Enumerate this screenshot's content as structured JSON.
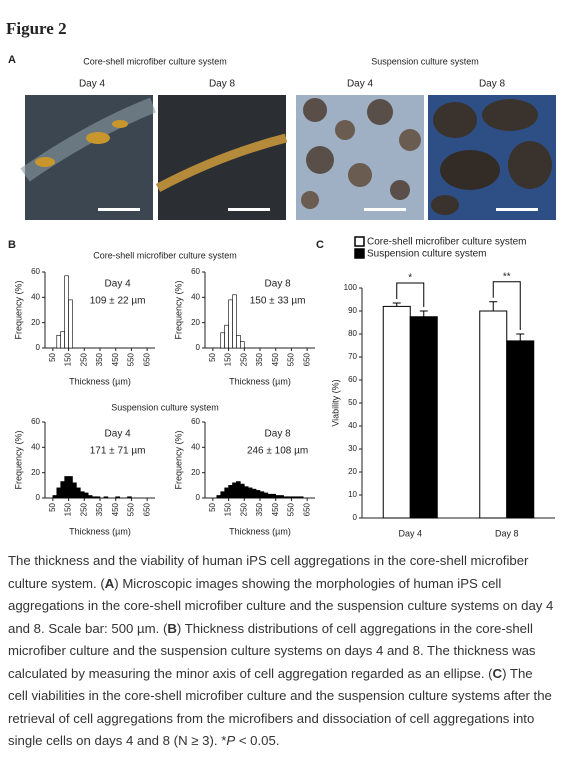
{
  "figure_title": "Figure 2",
  "panel_a": {
    "label": "A",
    "groups": [
      {
        "title": "Core-shell microfiber culture system",
        "days": [
          "Day 4",
          "Day 8"
        ]
      },
      {
        "title": "Suspension culture system",
        "days": [
          "Day 4",
          "Day 8"
        ]
      }
    ]
  },
  "panel_b": {
    "label": "B",
    "groups": [
      "Core-shell microfiber culture system",
      "Suspension culture system"
    ]
  },
  "panel_c": {
    "label": "C"
  },
  "chart_data": [
    {
      "type": "histogram",
      "annotations": [
        "Day 4",
        "109 ± 22 µm"
      ],
      "ylabel": "Frequency (%)",
      "xlabel": "Thickness (µm)",
      "bins": [
        75,
        100,
        125,
        150,
        175
      ],
      "counts": [
        10,
        13,
        57,
        38
      ],
      "color": "#ffffff",
      "xlim": [
        0,
        700
      ],
      "xticks": [
        50,
        150,
        250,
        350,
        450,
        550,
        650
      ],
      "ylim": [
        0,
        60
      ],
      "yticks": [
        0,
        20,
        40,
        60
      ]
    },
    {
      "type": "histogram",
      "annotations": [
        "Day 8",
        "150 ± 33 µm"
      ],
      "ylabel": "Frequency (%)",
      "xlabel": "Thickness (µm)",
      "bins": [
        100,
        125,
        150,
        175,
        200,
        225,
        250
      ],
      "counts": [
        12,
        18,
        38,
        42,
        10,
        5
      ],
      "color": "#ffffff",
      "xlim": [
        0,
        700
      ],
      "xticks": [
        50,
        150,
        250,
        350,
        450,
        550,
        650
      ],
      "ylim": [
        0,
        60
      ],
      "yticks": [
        0,
        20,
        40,
        60
      ]
    },
    {
      "type": "histogram",
      "annotations": [
        "Day 4",
        "171 ± 71 µm"
      ],
      "ylabel": "Frequency (%)",
      "xlabel": "Thickness (µm)",
      "bins": [
        50,
        75,
        100,
        125,
        150,
        175,
        200,
        225,
        250,
        275,
        300,
        325,
        350,
        375,
        400,
        425,
        450,
        475,
        500,
        525,
        550
      ],
      "counts": [
        2,
        8,
        13,
        17,
        17,
        12,
        8,
        5,
        4,
        2,
        1,
        1,
        0,
        1,
        0,
        0,
        1,
        0,
        0,
        1
      ],
      "color": "#000000",
      "xlim": [
        0,
        700
      ],
      "xticks": [
        50,
        150,
        250,
        350,
        450,
        550,
        650
      ],
      "ylim": [
        0,
        60
      ],
      "yticks": [
        0,
        20,
        40,
        60
      ]
    },
    {
      "type": "histogram",
      "annotations": [
        "Day 8",
        "246 ± 108 µm"
      ],
      "ylabel": "Frequency (%)",
      "xlabel": "Thickness (µm)",
      "bins": [
        75,
        100,
        125,
        150,
        175,
        200,
        225,
        250,
        275,
        300,
        325,
        350,
        375,
        400,
        425,
        450,
        475,
        500,
        525,
        550,
        575,
        600,
        625
      ],
      "counts": [
        2,
        5,
        8,
        10,
        12,
        13,
        11,
        9,
        8,
        7,
        6,
        5,
        4,
        3,
        3,
        2,
        2,
        1,
        1,
        1,
        1,
        1
      ],
      "color": "#000000",
      "xlim": [
        0,
        700
      ],
      "xticks": [
        50,
        150,
        250,
        350,
        450,
        550,
        650
      ],
      "ylim": [
        0,
        60
      ],
      "yticks": [
        0,
        20,
        40,
        60
      ]
    },
    {
      "type": "bar",
      "ylabel": "Viability (%)",
      "categories": [
        "Day 4",
        "Day 8"
      ],
      "series": [
        {
          "name": "Core-shell microfiber culture system",
          "color": "#ffffff",
          "values": [
            92,
            90
          ],
          "errors": [
            1.5,
            4
          ]
        },
        {
          "name": "Suspension culture system",
          "color": "#000000",
          "values": [
            87.5,
            77
          ],
          "errors": [
            2.5,
            3
          ]
        }
      ],
      "annotations": [
        "*",
        "**"
      ],
      "ylim": [
        0,
        100
      ],
      "yticks": [
        0,
        10,
        20,
        30,
        40,
        50,
        60,
        70,
        80,
        90,
        100
      ]
    }
  ],
  "caption": [
    "The thickness and the viability of human iPS cell aggregations in the core-shell microfiber culture system. (",
    "A",
    ") Microscopic images showing the morphologies of human iPS cell aggregations in the core-shell microfiber culture and the suspension culture systems on day 4 and 8. Scale bar: 500 µm. (",
    "B",
    ") Thickness distributions of cell aggregations in the core-shell microfiber culture and the suspension culture systems on days 4 and 8. The thickness was calculated by measuring the minor axis of cell aggregation regarded as an ellipse. (",
    "C",
    ") The cell viabilities in the core-shell microfiber culture and the suspension culture systems after the retrieval of cell aggregations from the microfibers and dissociation of cell aggregations into single cells on days 4 and 8 (N ≥ 3). *",
    "P",
    " < 0.05."
  ]
}
